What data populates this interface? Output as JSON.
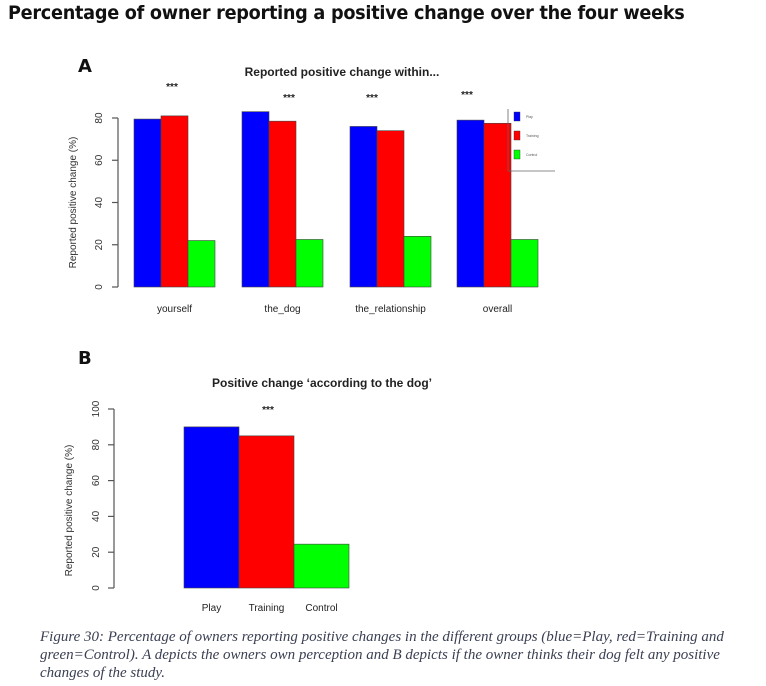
{
  "page": {
    "title": "Percentage of owner reporting a positive change over the four weeks",
    "caption": "Figure 30: Percentage of owners reporting positive changes in the different groups (blue=Play, red=Training and green=Control). A depicts the owners own perception and B depicts if the owner thinks their dog felt any positive changes of the study."
  },
  "colors": {
    "Play": "#0000ff",
    "Training": "#ff0000",
    "Control": "#00ff00",
    "axis": "#555555"
  },
  "chart_data": [
    {
      "panel": "A",
      "type": "bar",
      "title": "Reported positive change within...",
      "xlabel": "",
      "ylabel": "Reported positive change (%)",
      "categories": [
        "yourself",
        "the_dog",
        "the_relationship",
        "overall"
      ],
      "series": [
        {
          "name": "Play",
          "values": [
            79.5,
            83,
            76,
            79
          ]
        },
        {
          "name": "Training",
          "values": [
            81,
            78.5,
            74,
            77.5
          ]
        },
        {
          "name": "Control",
          "values": [
            22,
            22.5,
            24,
            22.5
          ]
        }
      ],
      "significance": [
        "***",
        "***",
        "***",
        "***"
      ],
      "yticks": [
        0,
        20,
        40,
        60,
        80
      ],
      "ylim": [
        0,
        80
      ],
      "grid": false,
      "legend": {
        "entries": [
          "Play",
          "Training",
          "Control"
        ],
        "placement": "top-right"
      }
    },
    {
      "panel": "B",
      "type": "bar",
      "title": "Positive change ‘according to the dog’",
      "xlabel": "",
      "ylabel": "Reported positive change (%)",
      "categories": [
        "Play",
        "Training",
        "Control"
      ],
      "values": [
        90,
        85,
        24.5
      ],
      "significance": "***",
      "yticks": [
        0,
        20,
        40,
        60,
        80,
        100
      ],
      "ylim": [
        0,
        100
      ],
      "grid": false
    }
  ]
}
